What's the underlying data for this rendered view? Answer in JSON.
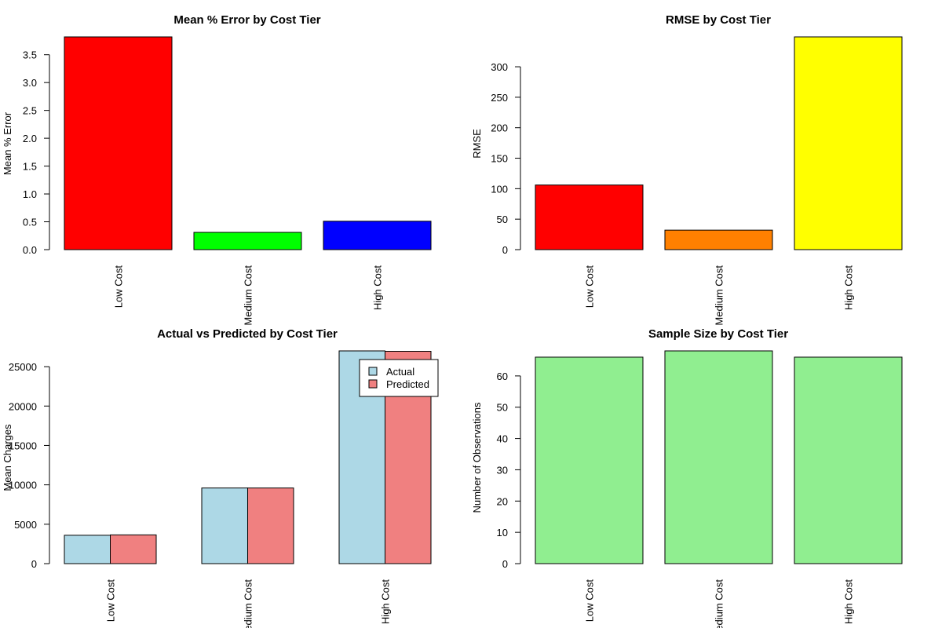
{
  "page": {
    "background": "#ffffff"
  },
  "chart_data": [
    {
      "type": "bar",
      "title": "Mean % Error by Cost Tier",
      "xlabel": "",
      "ylabel": "Mean % Error",
      "categories": [
        "Low Cost",
        "Medium Cost",
        "High Cost"
      ],
      "values": [
        3.82,
        0.31,
        0.51
      ],
      "colors": [
        "#ff0000",
        "#00ff00",
        "#0000ff"
      ],
      "yticks": [
        "0.0",
        "0.5",
        "1.0",
        "1.5",
        "2.0",
        "2.5",
        "3.0",
        "3.5"
      ],
      "ytick_values": [
        0,
        0.5,
        1.0,
        1.5,
        2.0,
        2.5,
        3.0,
        3.5
      ],
      "ylim": [
        0,
        3.82
      ],
      "grid": false,
      "label_orientation": "vertical"
    },
    {
      "type": "bar",
      "title": "RMSE by Cost Tier",
      "xlabel": "",
      "ylabel": "RMSE",
      "categories": [
        "Low Cost",
        "Medium Cost",
        "High Cost"
      ],
      "values": [
        106,
        32,
        349
      ],
      "colors": [
        "#ff0000",
        "#ff8000",
        "#ffff00"
      ],
      "yticks": [
        "0",
        "50",
        "100",
        "150",
        "200",
        "250",
        "300"
      ],
      "ytick_values": [
        0,
        50,
        100,
        150,
        200,
        250,
        300
      ],
      "ylim": [
        0,
        349
      ],
      "grid": false,
      "label_orientation": "vertical"
    },
    {
      "type": "bar",
      "subtype": "grouped",
      "title": "Actual vs Predicted by Cost Tier",
      "xlabel": "",
      "ylabel": "Mean Charges",
      "categories": [
        "Low Cost",
        "Medium Cost",
        "High Cost"
      ],
      "series": [
        {
          "name": "Actual",
          "values": [
            3600,
            9600,
            27000
          ],
          "color": "#add8e6"
        },
        {
          "name": "Predicted",
          "values": [
            3650,
            9600,
            26950
          ],
          "color": "#f08080"
        }
      ],
      "yticks": [
        "0",
        "5000",
        "10000",
        "15000",
        "20000",
        "25000"
      ],
      "ytick_values": [
        0,
        5000,
        10000,
        15000,
        20000,
        25000
      ],
      "ylim": [
        0,
        27000
      ],
      "grid": false,
      "legend": "top-right",
      "label_orientation": "vertical"
    },
    {
      "type": "bar",
      "title": "Sample Size by Cost Tier",
      "xlabel": "",
      "ylabel": "Number of Observations",
      "categories": [
        "Low Cost",
        "Medium Cost",
        "High Cost"
      ],
      "values": [
        66,
        68,
        66
      ],
      "colors": [
        "#90ee90",
        "#90ee90",
        "#90ee90"
      ],
      "yticks": [
        "0",
        "10",
        "20",
        "30",
        "40",
        "50",
        "60"
      ],
      "ytick_values": [
        0,
        10,
        20,
        30,
        40,
        50,
        60
      ],
      "ylim": [
        0,
        68
      ],
      "grid": false,
      "label_orientation": "vertical"
    }
  ]
}
